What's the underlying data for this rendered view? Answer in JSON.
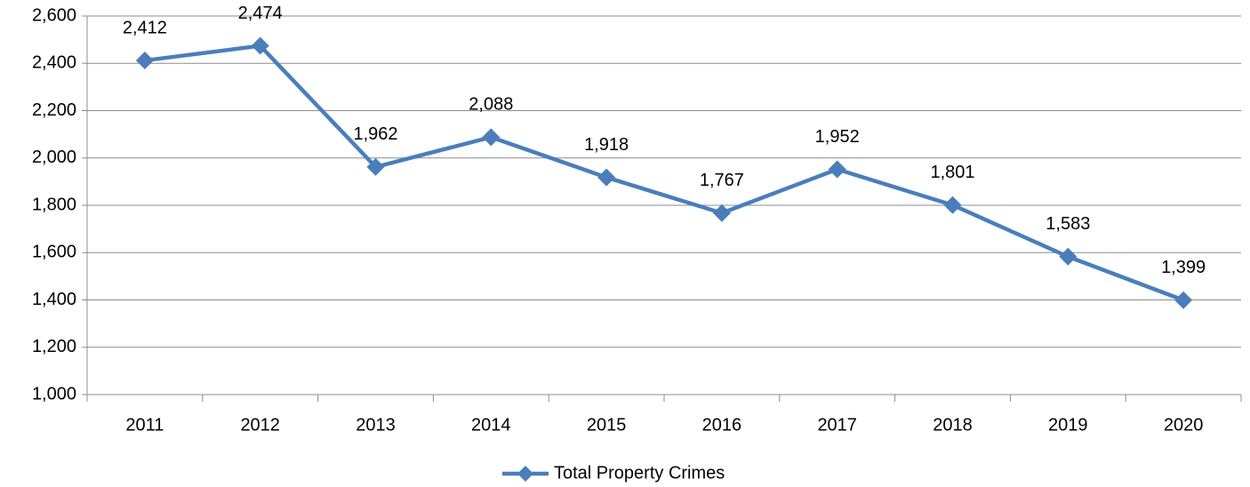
{
  "chart_data": {
    "type": "line",
    "categories": [
      "2011",
      "2012",
      "2013",
      "2014",
      "2015",
      "2016",
      "2017",
      "2018",
      "2019",
      "2020"
    ],
    "series": [
      {
        "name": "Total Property Crimes",
        "color": "#4a7ebb",
        "values": [
          2412,
          2474,
          1962,
          2088,
          1918,
          1767,
          1952,
          1801,
          1583,
          1399
        ],
        "value_labels": [
          "2,412",
          "2,474",
          "1,962",
          "2,088",
          "1,918",
          "1,767",
          "1,952",
          "1,801",
          "1,583",
          "1,399"
        ]
      }
    ],
    "ylim": [
      1000,
      2600
    ],
    "yticks": [
      {
        "value": 1000,
        "label": "1,000"
      },
      {
        "value": 1200,
        "label": "1,200"
      },
      {
        "value": 1400,
        "label": "1,400"
      },
      {
        "value": 1600,
        "label": "1,600"
      },
      {
        "value": 1800,
        "label": "1,800"
      },
      {
        "value": 2000,
        "label": "2,000"
      },
      {
        "value": 2200,
        "label": "2,200"
      },
      {
        "value": 2400,
        "label": "2,400"
      },
      {
        "value": 2600,
        "label": "2,600"
      }
    ],
    "grid": true,
    "legend": "bottom"
  }
}
